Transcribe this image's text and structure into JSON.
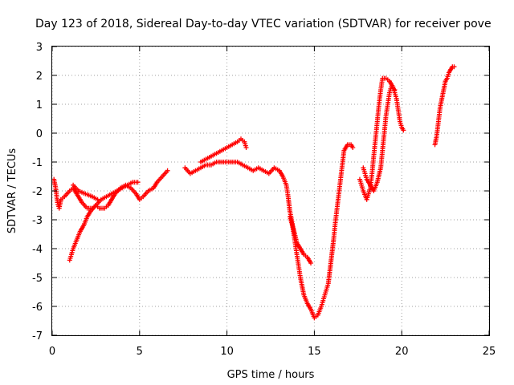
{
  "chart_data": {
    "type": "scatter",
    "title": "Day 123 of 2018, Sidereal Day-to-day VTEC variation (SDTVAR) for receiver pove",
    "xlabel": "GPS time / hours",
    "ylabel": "SDTVAR / TECUs",
    "xlim": [
      0,
      25
    ],
    "ylim": [
      -7,
      3
    ],
    "xticks": [
      0,
      5,
      10,
      15,
      20,
      25
    ],
    "yticks": [
      -7,
      -6,
      -5,
      -4,
      -3,
      -2,
      -1,
      0,
      1,
      2,
      3
    ],
    "grid": true,
    "marker": "+",
    "color": "#ff0000",
    "series": [
      {
        "values": [
          [
            0.1,
            -1.6
          ],
          [
            0.2,
            -1.9
          ],
          [
            0.3,
            -2.4
          ],
          [
            0.4,
            -2.6
          ],
          [
            0.5,
            -2.3
          ],
          [
            0.7,
            -2.2
          ],
          [
            1.0,
            -2.0
          ],
          [
            1.2,
            -1.9
          ],
          [
            1.3,
            -2.0
          ],
          [
            1.5,
            -2.2
          ],
          [
            1.7,
            -2.4
          ],
          [
            2.0,
            -2.6
          ],
          [
            2.3,
            -2.6
          ],
          [
            2.5,
            -2.5
          ],
          [
            2.7,
            -2.6
          ],
          [
            3.0,
            -2.6
          ],
          [
            3.2,
            -2.5
          ],
          [
            3.4,
            -2.3
          ],
          [
            3.6,
            -2.1
          ],
          [
            3.9,
            -1.9
          ],
          [
            4.2,
            -1.8
          ],
          [
            4.5,
            -1.9
          ],
          [
            4.8,
            -2.1
          ],
          [
            5.0,
            -2.3
          ],
          [
            5.2,
            -2.2
          ],
          [
            5.5,
            -2.0
          ],
          [
            5.8,
            -1.9
          ],
          [
            6.0,
            -1.7
          ],
          [
            6.3,
            -1.5
          ],
          [
            6.6,
            -1.3
          ]
        ]
      },
      {
        "values": [
          [
            1.0,
            -4.4
          ],
          [
            1.2,
            -4.0
          ],
          [
            1.4,
            -3.7
          ],
          [
            1.6,
            -3.4
          ],
          [
            1.8,
            -3.2
          ],
          [
            2.0,
            -2.9
          ],
          [
            2.2,
            -2.7
          ],
          [
            2.5,
            -2.5
          ],
          [
            2.8,
            -2.3
          ],
          [
            3.1,
            -2.2
          ],
          [
            3.4,
            -2.1
          ],
          [
            3.7,
            -2.0
          ],
          [
            4.0,
            -1.9
          ],
          [
            4.3,
            -1.8
          ],
          [
            4.6,
            -1.7
          ],
          [
            4.9,
            -1.7
          ]
        ]
      },
      {
        "values": [
          [
            1.2,
            -1.8
          ],
          [
            1.5,
            -2.0
          ],
          [
            1.9,
            -2.1
          ],
          [
            2.3,
            -2.2
          ],
          [
            2.6,
            -2.3
          ]
        ]
      },
      {
        "values": [
          [
            7.6,
            -1.2
          ],
          [
            7.9,
            -1.4
          ],
          [
            8.2,
            -1.3
          ],
          [
            8.5,
            -1.2
          ],
          [
            8.8,
            -1.1
          ],
          [
            9.1,
            -1.1
          ],
          [
            9.4,
            -1.0
          ],
          [
            9.7,
            -1.0
          ],
          [
            10.0,
            -1.0
          ],
          [
            10.3,
            -1.0
          ],
          [
            10.6,
            -1.0
          ],
          [
            10.9,
            -1.1
          ],
          [
            11.2,
            -1.2
          ],
          [
            11.5,
            -1.3
          ],
          [
            11.8,
            -1.2
          ],
          [
            12.1,
            -1.3
          ],
          [
            12.4,
            -1.4
          ],
          [
            12.7,
            -1.2
          ],
          [
            13.0,
            -1.3
          ],
          [
            13.2,
            -1.5
          ],
          [
            13.4,
            -1.8
          ],
          [
            13.5,
            -2.2
          ],
          [
            13.6,
            -2.7
          ],
          [
            13.7,
            -3.0
          ],
          [
            13.8,
            -3.4
          ],
          [
            13.9,
            -3.8
          ],
          [
            14.0,
            -4.2
          ],
          [
            14.1,
            -4.6
          ],
          [
            14.2,
            -5.0
          ],
          [
            14.3,
            -5.3
          ],
          [
            14.4,
            -5.6
          ],
          [
            14.6,
            -5.9
          ],
          [
            14.8,
            -6.1
          ],
          [
            15.0,
            -6.4
          ],
          [
            15.2,
            -6.3
          ],
          [
            15.4,
            -6.0
          ],
          [
            15.6,
            -5.6
          ],
          [
            15.8,
            -5.2
          ],
          [
            15.9,
            -4.7
          ],
          [
            16.0,
            -4.2
          ],
          [
            16.1,
            -3.7
          ],
          [
            16.2,
            -3.1
          ],
          [
            16.3,
            -2.6
          ],
          [
            16.4,
            -2.1
          ],
          [
            16.5,
            -1.6
          ],
          [
            16.6,
            -1.1
          ],
          [
            16.7,
            -0.6
          ],
          [
            16.9,
            -0.4
          ],
          [
            17.1,
            -0.4
          ],
          [
            17.2,
            -0.5
          ]
        ]
      },
      {
        "values": [
          [
            8.5,
            -1.0
          ],
          [
            8.8,
            -0.9
          ],
          [
            9.1,
            -0.8
          ],
          [
            9.4,
            -0.7
          ],
          [
            9.7,
            -0.6
          ],
          [
            10.0,
            -0.5
          ],
          [
            10.3,
            -0.4
          ],
          [
            10.6,
            -0.3
          ],
          [
            10.8,
            -0.2
          ],
          [
            11.0,
            -0.3
          ],
          [
            11.1,
            -0.5
          ]
        ]
      },
      {
        "values": [
          [
            13.6,
            -2.9
          ],
          [
            13.8,
            -3.3
          ],
          [
            14.0,
            -3.8
          ],
          [
            14.2,
            -4.0
          ],
          [
            14.4,
            -4.2
          ],
          [
            14.6,
            -4.3
          ],
          [
            14.8,
            -4.5
          ]
        ]
      },
      {
        "values": [
          [
            17.6,
            -1.6
          ],
          [
            17.8,
            -2.0
          ],
          [
            18.0,
            -2.3
          ],
          [
            18.2,
            -1.9
          ],
          [
            18.3,
            -1.4
          ],
          [
            18.4,
            -0.8
          ],
          [
            18.5,
            -0.2
          ],
          [
            18.6,
            0.4
          ],
          [
            18.7,
            1.0
          ],
          [
            18.8,
            1.5
          ],
          [
            18.9,
            1.9
          ],
          [
            19.1,
            1.9
          ],
          [
            19.3,
            1.8
          ],
          [
            19.5,
            1.6
          ],
          [
            19.7,
            1.2
          ],
          [
            19.8,
            0.8
          ],
          [
            19.9,
            0.4
          ],
          [
            20.0,
            0.2
          ],
          [
            20.1,
            0.1
          ]
        ]
      },
      {
        "values": [
          [
            17.8,
            -1.2
          ],
          [
            18.0,
            -1.6
          ],
          [
            18.2,
            -1.8
          ],
          [
            18.4,
            -2.0
          ],
          [
            18.6,
            -1.7
          ],
          [
            18.8,
            -1.2
          ],
          [
            18.9,
            -0.6
          ],
          [
            19.0,
            0.0
          ],
          [
            19.1,
            0.6
          ],
          [
            19.2,
            1.0
          ],
          [
            19.3,
            1.4
          ],
          [
            19.4,
            1.6
          ],
          [
            19.6,
            1.5
          ]
        ]
      },
      {
        "values": [
          [
            21.9,
            -0.4
          ],
          [
            22.0,
            -0.1
          ],
          [
            22.1,
            0.4
          ],
          [
            22.2,
            0.9
          ],
          [
            22.3,
            1.2
          ],
          [
            22.4,
            1.5
          ],
          [
            22.5,
            1.8
          ],
          [
            22.6,
            1.9
          ],
          [
            22.7,
            2.1
          ],
          [
            22.8,
            2.2
          ],
          [
            22.9,
            2.3
          ],
          [
            23.0,
            2.3
          ]
        ]
      }
    ]
  }
}
